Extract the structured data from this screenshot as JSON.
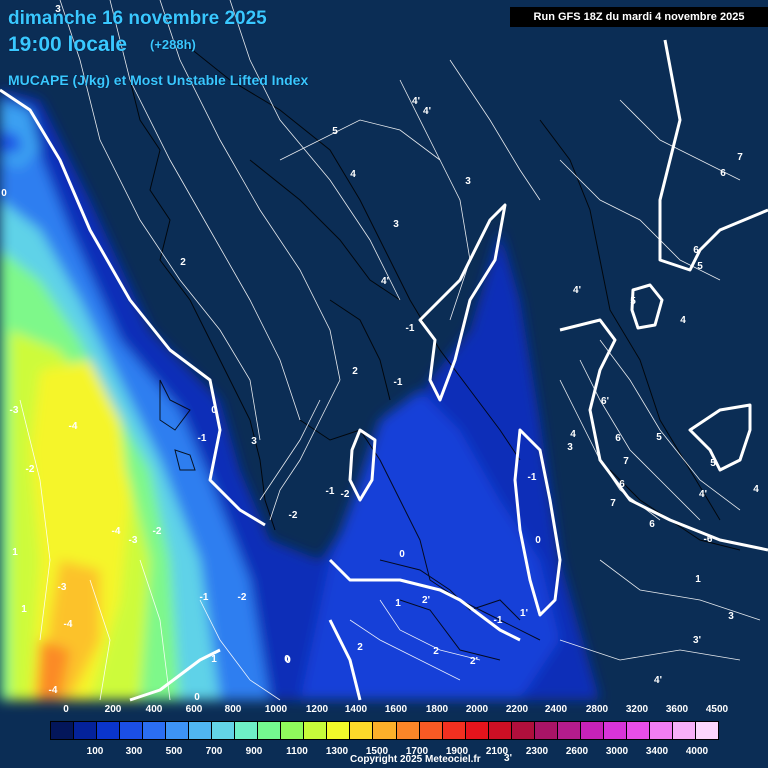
{
  "header": {
    "date": "dimanche 16 novembre 2025",
    "time": "19:00 locale",
    "lead": "(+288h)",
    "parameter": "MUCAPE (J/kg) et Most Unstable Lifted Index",
    "run": "Run GFS 18Z du mardi 4 novembre 2025"
  },
  "legend": {
    "top_ticks": [
      "0",
      "200",
      "400",
      "600",
      "800",
      "1000",
      "1200",
      "1400",
      "1600",
      "1800",
      "2000",
      "2200",
      "2400",
      "2800",
      "3200",
      "3600",
      "4500"
    ],
    "bottom_ticks": [
      "100",
      "300",
      "500",
      "700",
      "900",
      "1100",
      "1300",
      "1500",
      "1700",
      "1900",
      "2100",
      "2300",
      "2600",
      "3000",
      "3400",
      "4000"
    ],
    "colors": [
      "#03165a",
      "#04229a",
      "#0a35cc",
      "#1b4fe6",
      "#2b6ef2",
      "#3d93f5",
      "#50b5f0",
      "#63d4e6",
      "#6ef0c6",
      "#74f98f",
      "#8ffa5c",
      "#c7fb3a",
      "#f2fa2a",
      "#fcd92a",
      "#fcb02a",
      "#fb8628",
      "#f85a24",
      "#f23020",
      "#e4141c",
      "#cc0f24",
      "#b00f3c",
      "#a81466",
      "#b41c8c",
      "#c622b8",
      "#d834d8",
      "#e84ee8",
      "#f27ef2",
      "#f8b0f8",
      "#fcd6fc"
    ],
    "copyright": "Copyright 2025 Meteociel.fr"
  },
  "contour_labels": [
    {
      "t": "3"
    },
    {
      "t": "0"
    },
    {
      "t": "4'"
    },
    {
      "t": "4'"
    },
    {
      "t": "5"
    },
    {
      "t": "4"
    },
    {
      "t": "3"
    },
    {
      "t": "7"
    },
    {
      "t": "6"
    },
    {
      "t": "3"
    },
    {
      "t": "2"
    },
    {
      "t": "4'"
    },
    {
      "t": "6"
    },
    {
      "t": "5"
    },
    {
      "t": "4'"
    },
    {
      "t": "5"
    },
    {
      "t": "4"
    },
    {
      "t": "-1"
    },
    {
      "t": "-1"
    },
    {
      "t": "2"
    },
    {
      "t": "-3"
    },
    {
      "t": "-4"
    },
    {
      "t": "0"
    },
    {
      "t": "-1"
    },
    {
      "t": "3"
    },
    {
      "t": "6'"
    },
    {
      "t": "4"
    },
    {
      "t": "3"
    },
    {
      "t": "6"
    },
    {
      "t": "5"
    },
    {
      "t": "-2"
    },
    {
      "t": "7"
    },
    {
      "t": "5"
    },
    {
      "t": "6"
    },
    {
      "t": "7"
    },
    {
      "t": "4'"
    },
    {
      "t": "4"
    },
    {
      "t": "-2"
    },
    {
      "t": "-1"
    },
    {
      "t": "-1"
    },
    {
      "t": "-4"
    },
    {
      "t": "-3"
    },
    {
      "t": "-2"
    },
    {
      "t": "-2"
    },
    {
      "t": "0"
    },
    {
      "t": "1"
    },
    {
      "t": "0"
    },
    {
      "t": "-3"
    },
    {
      "t": "-1"
    },
    {
      "t": "-2"
    },
    {
      "t": "1"
    },
    {
      "t": "2'"
    },
    {
      "t": "1"
    },
    {
      "t": "-1"
    },
    {
      "t": "1'"
    },
    {
      "t": "0"
    },
    {
      "t": "-4"
    },
    {
      "t": "2"
    },
    {
      "t": "2"
    },
    {
      "t": "2'"
    },
    {
      "t": "1"
    },
    {
      "t": "0"
    },
    {
      "t": "0"
    },
    {
      "t": "-4"
    },
    {
      "t": "4'"
    },
    {
      "t": "3'"
    },
    {
      "t": "1"
    },
    {
      "t": "6"
    },
    {
      "t": "-6"
    },
    {
      "t": "3"
    },
    {
      "t": "3'"
    }
  ]
}
